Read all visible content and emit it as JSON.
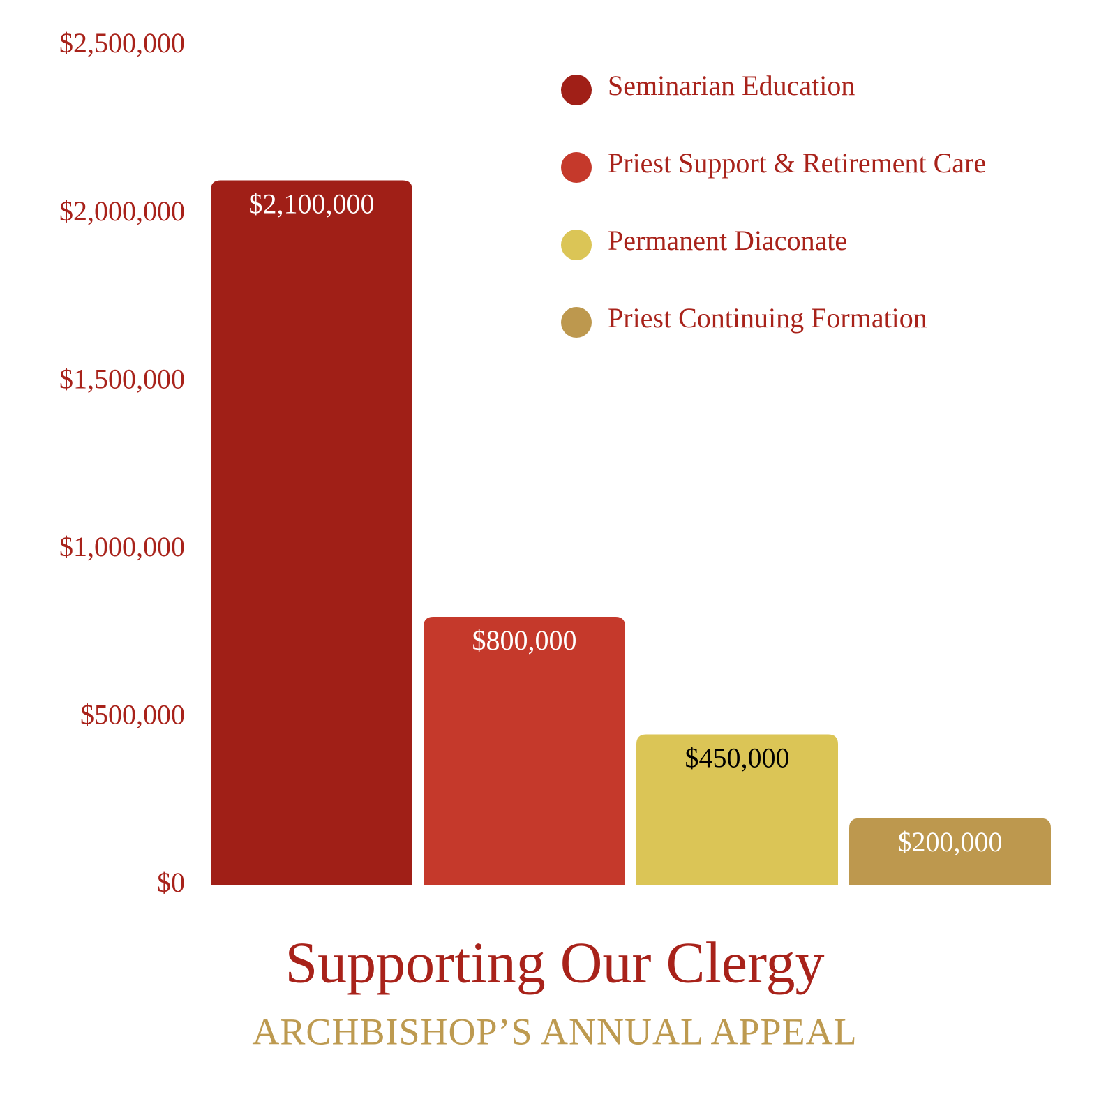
{
  "chart_data": {
    "type": "bar",
    "title": "Supporting Our Clergy",
    "subtitle": "ARCHBISHOP’S ANNUAL APPEAL",
    "categories": [
      "Seminarian Education",
      "Priest Support & Retirement Care",
      "Permanent Diaconate",
      "Priest Continuing Formation"
    ],
    "values": [
      2100000,
      800000,
      450000,
      200000
    ],
    "value_labels": [
      "$2,100,000",
      "$800,000",
      "$450,000",
      "$200,000"
    ],
    "colors": [
      "#a01f17",
      "#c5392b",
      "#dbc556",
      "#bd984e"
    ],
    "value_label_colors": [
      "#ffffff",
      "#ffffff",
      "#000000",
      "#ffffff"
    ],
    "ylim": [
      0,
      2500000
    ],
    "yticks": [
      {
        "value": 0,
        "label": "$0"
      },
      {
        "value": 500000,
        "label": "$500,000"
      },
      {
        "value": 1000000,
        "label": "$1,000,000"
      },
      {
        "value": 1500000,
        "label": "$1,500,000"
      },
      {
        "value": 2000000,
        "label": "$2,000,000"
      },
      {
        "value": 2500000,
        "label": "$2,500,000"
      }
    ],
    "grid": false,
    "legend": "top-right"
  }
}
